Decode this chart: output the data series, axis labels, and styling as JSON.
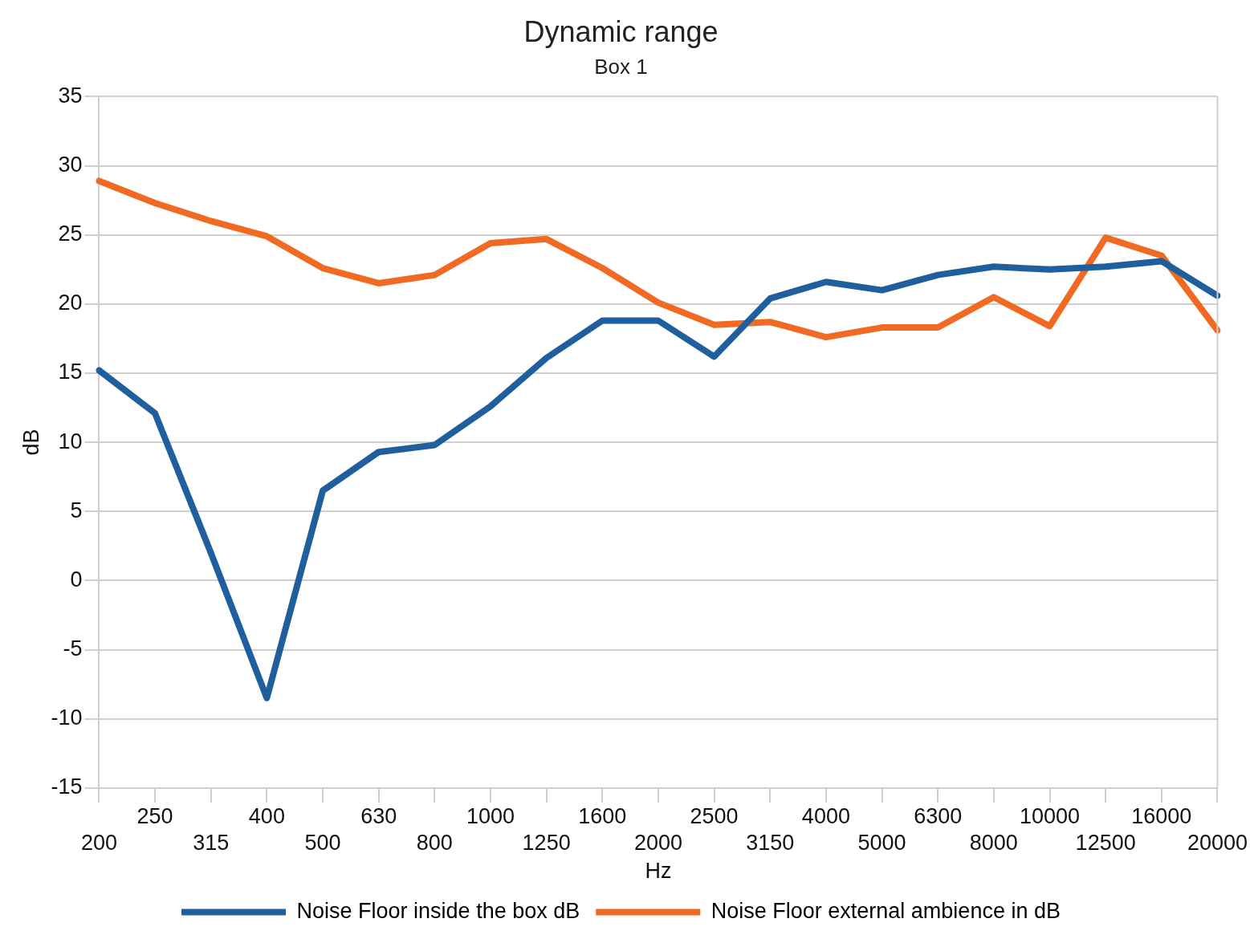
{
  "chart_data": {
    "type": "line",
    "title": "Dynamic range",
    "subtitle": "Box 1",
    "xlabel": "Hz",
    "ylabel": "dB",
    "categories": [
      "200",
      "250",
      "315",
      "400",
      "500",
      "630",
      "800",
      "1000",
      "1250",
      "1600",
      "2000",
      "2500",
      "3150",
      "4000",
      "5000",
      "6300",
      "8000",
      "10000",
      "12500",
      "16000",
      "20000"
    ],
    "series": [
      {
        "name": "Noise Floor inside the box dB",
        "color": "#1f5f9e",
        "values": [
          15.2,
          12.1,
          2,
          -8.5,
          6.5,
          9.3,
          9.8,
          12.6,
          16.1,
          18.8,
          18.8,
          16.2,
          20.4,
          21.6,
          21.0,
          22.1,
          22.7,
          22.5,
          22.7,
          23.1,
          20.6
        ]
      },
      {
        "name": "Noise Floor external ambience in dB",
        "color": "#f06a24",
        "values": [
          28.9,
          27.3,
          26.0,
          24.9,
          22.6,
          21.5,
          22.1,
          24.4,
          24.7,
          22.6,
          20.1,
          18.5,
          18.7,
          17.6,
          18.3,
          18.3,
          20.5,
          18.4,
          24.8,
          23.5,
          18.1
        ]
      }
    ],
    "ylim": [
      -15,
      35
    ],
    "yticks": [
      -15,
      -10,
      -5,
      0,
      5,
      10,
      15,
      20,
      25,
      30,
      35
    ],
    "grid": "y",
    "legend": "bottom",
    "marker": "none",
    "line_style": "solid"
  }
}
